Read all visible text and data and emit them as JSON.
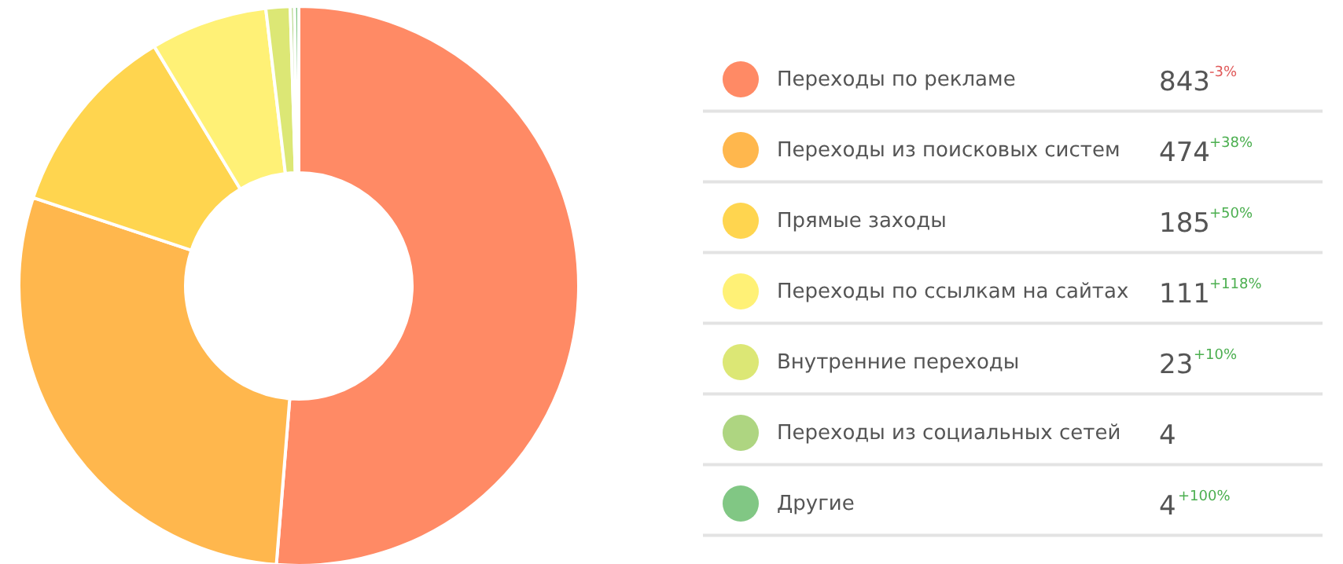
{
  "chart_data": {
    "type": "donut",
    "categories": [
      "Переходы по рекламе",
      "Переходы из поисковых систем",
      "Прямые заходы",
      "Переходы по ссылкам на сайтах",
      "Внутренние переходы",
      "Переходы из социальных сетей",
      "Другие"
    ],
    "values": [
      843,
      474,
      185,
      111,
      23,
      4,
      4
    ],
    "colors": [
      "#ff8a65",
      "#ffb74d",
      "#ffd54f",
      "#fff176",
      "#dce775",
      "#aed581",
      "#81c784"
    ],
    "data_labels": true,
    "legend": "right",
    "annotations": [
      {
        "text": "-3%",
        "x": "Переходы по рекламе"
      },
      {
        "text": "+38%",
        "x": "Переходы из поисковых систем"
      },
      {
        "text": "+50%",
        "x": "Прямые заходы"
      },
      {
        "text": "+118%",
        "x": "Переходы по ссылкам на сайтах"
      },
      {
        "text": "+10%",
        "x": "Внутренние переходы"
      },
      {
        "text": "+100%",
        "x": "Другие"
      }
    ]
  }
}
